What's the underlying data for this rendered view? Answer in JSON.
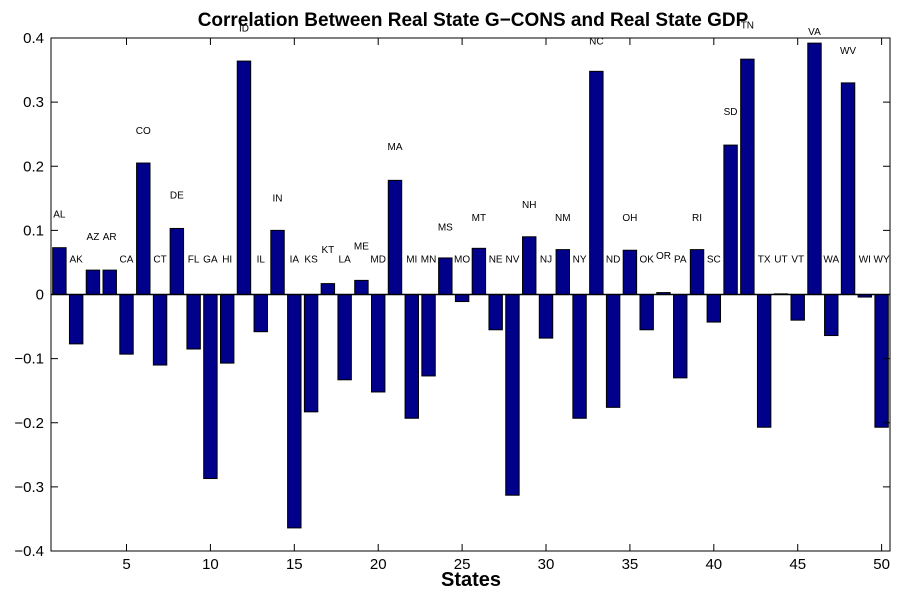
{
  "chart_data": {
    "type": "bar",
    "title": "Correlation Between  Real State G−CONS and  Real State GDP",
    "xlabel": "States",
    "ylabel": "",
    "xlim": [
      0.5,
      50.5
    ],
    "ylim": [
      -0.4,
      0.4
    ],
    "xticks": [
      5,
      10,
      15,
      20,
      25,
      30,
      35,
      40,
      45,
      50
    ],
    "yticks": [
      -0.4,
      -0.3,
      -0.2,
      -0.1,
      0,
      0.1,
      0.2,
      0.3,
      0.4
    ],
    "ytick_labels": [
      "−0.4",
      "−0.3",
      "−0.2",
      "−0.1",
      "0",
      "0.1",
      "0.2",
      "0.3",
      "0.4"
    ],
    "bar_color": "#00008b",
    "grid": false,
    "categories": [
      "AL",
      "AK",
      "AZ",
      "AR",
      "CA",
      "CO",
      "CT",
      "DE",
      "FL",
      "GA",
      "HI",
      "ID",
      "IL",
      "IN",
      "IA",
      "KS",
      "KT",
      "LA",
      "ME",
      "MD",
      "MA",
      "MI",
      "MN",
      "MS",
      "MO",
      "MT",
      "NE",
      "NV",
      "NH",
      "NJ",
      "NM",
      "NY",
      "NC",
      "ND",
      "OH",
      "OK",
      "OR",
      "PA",
      "RI",
      "SC",
      "SD",
      "TN",
      "TX",
      "UT",
      "VT",
      "VA",
      "WA",
      "WV",
      "WI",
      "WY"
    ],
    "label_display": [
      "AL",
      "AK",
      "AZ",
      "AR",
      "CA",
      "CO",
      "CT",
      "DE",
      "FL",
      "GA",
      "HI",
      "ID",
      "IL",
      "IN",
      "IA",
      "KS",
      "KT",
      "LA",
      "ME",
      "MD",
      "MA",
      "MI",
      "MN",
      "MS",
      "MO",
      "MT",
      "NE",
      "NV",
      "NH",
      "NJ",
      "NM",
      "NY",
      "NC",
      "ND",
      "OH",
      "OK",
      "OR",
      "PA",
      "RI",
      "SC",
      "SD",
      "TN",
      "TX",
      "UT",
      "VT",
      "VA",
      "WA",
      "WV",
      "WI",
      "WY"
    ],
    "label_y": [
      0.12,
      0.05,
      0.085,
      0.085,
      0.05,
      0.25,
      0.05,
      0.15,
      0.05,
      0.05,
      0.05,
      0.41,
      0.05,
      0.145,
      0.05,
      0.05,
      0.065,
      0.05,
      0.07,
      0.05,
      0.225,
      0.05,
      0.05,
      0.1,
      0.05,
      0.115,
      0.05,
      0.05,
      0.135,
      0.05,
      0.115,
      0.05,
      0.39,
      0.05,
      0.115,
      0.05,
      0.055,
      0.05,
      0.115,
      0.05,
      0.28,
      0.415,
      0.05,
      0.05,
      0.05,
      0.405,
      0.05,
      0.375,
      0.05,
      0.05
    ],
    "values": [
      0.073,
      -0.077,
      0.038,
      0.038,
      -0.093,
      0.205,
      -0.11,
      0.103,
      -0.085,
      -0.287,
      -0.107,
      0.364,
      -0.058,
      0.1,
      -0.364,
      -0.183,
      0.017,
      -0.133,
      0.022,
      -0.152,
      0.178,
      -0.193,
      -0.127,
      0.057,
      -0.011,
      0.072,
      -0.055,
      -0.313,
      0.09,
      -0.068,
      0.07,
      -0.193,
      0.348,
      -0.176,
      0.069,
      -0.055,
      0.003,
      -0.13,
      0.07,
      -0.043,
      0.233,
      0.367,
      -0.207,
      0.001,
      -0.04,
      0.392,
      -0.064,
      0.33,
      -0.004,
      -0.207
    ]
  }
}
